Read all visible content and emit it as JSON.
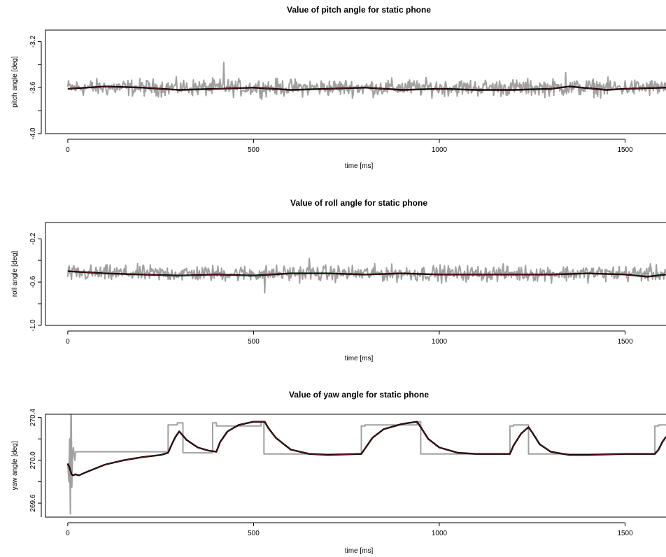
{
  "chart_data": [
    {
      "type": "line",
      "title": "Value of pitch angle for static phone",
      "xlabel": "time [ms]",
      "ylabel": "pitch angle [deg]",
      "xlim": [
        -60,
        1610
      ],
      "ylim": [
        -4.0,
        -3.1
      ],
      "xticks": [
        0,
        500,
        1000,
        1500
      ],
      "xtick_labels": [
        "0",
        "500",
        "1000",
        "1500"
      ],
      "yticks": [
        -4.0,
        -3.6,
        -3.2
      ],
      "ytick_labels": [
        "-4.0",
        "-3.6",
        "-3.2"
      ],
      "yminor": [
        -3.8,
        -3.4
      ],
      "grid": false,
      "series": [
        {
          "role": "raw",
          "color": "#a0a0a0",
          "noise": 0.055,
          "spikes": [
            [
              420,
              -3.38
            ],
            [
              1340,
              -3.47
            ]
          ],
          "x": [
            0,
            1610
          ],
          "values": [
            -3.6,
            -3.6
          ]
        },
        {
          "role": "smoothed",
          "color": "#000000",
          "x": [
            0,
            100,
            200,
            300,
            400,
            500,
            600,
            700,
            800,
            900,
            1000,
            1100,
            1200,
            1300,
            1350,
            1450,
            1500,
            1610
          ],
          "values": [
            -3.61,
            -3.59,
            -3.6,
            -3.62,
            -3.61,
            -3.6,
            -3.62,
            -3.61,
            -3.6,
            -3.62,
            -3.61,
            -3.62,
            -3.62,
            -3.61,
            -3.59,
            -3.62,
            -3.61,
            -3.6
          ]
        }
      ]
    },
    {
      "type": "line",
      "title": "Value of roll angle for static phone",
      "xlabel": "time [ms]",
      "ylabel": "roll angle [deg]",
      "xlim": [
        -60,
        1610
      ],
      "ylim": [
        -1.0,
        -0.05
      ],
      "xticks": [
        0,
        500,
        1000,
        1500
      ],
      "xtick_labels": [
        "0",
        "500",
        "1000",
        "1500"
      ],
      "yticks": [
        -1.0,
        -0.6,
        -0.2
      ],
      "ytick_labels": [
        "-1.0",
        "-0.6",
        "-0.2"
      ],
      "yminor": [
        -0.8,
        -0.4
      ],
      "grid": false,
      "series": [
        {
          "role": "raw",
          "color": "#a0a0a0",
          "noise": 0.055,
          "spikes": [
            [
              650,
              -0.38
            ],
            [
              530,
              -0.7
            ]
          ],
          "x": [
            0,
            1610
          ],
          "values": [
            -0.52,
            -0.52
          ]
        },
        {
          "role": "smoothed",
          "color": "#000000",
          "x": [
            0,
            100,
            200,
            300,
            400,
            500,
            600,
            700,
            800,
            900,
            1000,
            1100,
            1200,
            1300,
            1400,
            1500,
            1560,
            1610
          ],
          "values": [
            -0.5,
            -0.52,
            -0.53,
            -0.54,
            -0.53,
            -0.54,
            -0.52,
            -0.52,
            -0.53,
            -0.52,
            -0.53,
            -0.53,
            -0.53,
            -0.53,
            -0.52,
            -0.53,
            -0.55,
            -0.53
          ]
        }
      ]
    },
    {
      "type": "line",
      "title": "Value of yaw angle for static phone",
      "xlabel": "time [ms]",
      "ylabel": "yaw angle [deg]",
      "xlim": [
        -60,
        1610
      ],
      "ylim": [
        269.47,
        270.43
      ],
      "xticks": [
        0,
        500,
        1000,
        1500
      ],
      "xtick_labels": [
        "0",
        "500",
        "1000",
        "1500"
      ],
      "yticks": [
        269.6,
        270.0,
        270.4
      ],
      "ytick_labels": [
        "269.6",
        "270.0",
        "270.4"
      ],
      "yminor": [
        269.8,
        270.2
      ],
      "grid": false,
      "series": [
        {
          "role": "raw",
          "color": "#a0a0a0",
          "x": [
            0,
            3,
            5,
            7,
            9,
            11,
            13,
            15,
            17,
            19,
            21,
            270,
            270,
            295,
            295,
            310,
            310,
            390,
            390,
            400,
            400,
            520,
            520,
            528,
            528,
            530,
            530,
            790,
            790,
            800,
            800,
            940,
            940,
            950,
            950,
            1190,
            1190,
            1200,
            1200,
            1240,
            1240,
            1580,
            1580,
            1590,
            1590,
            1610
          ],
          "values": [
            269.97,
            269.8,
            270.2,
            269.5,
            270.7,
            269.75,
            270.05,
            270.12,
            270.06,
            270.0,
            270.08,
            270.08,
            270.33,
            270.33,
            270.35,
            270.35,
            270.07,
            270.07,
            270.35,
            270.35,
            270.32,
            270.32,
            270.36,
            270.36,
            270.06,
            270.06,
            270.06,
            270.06,
            270.32,
            270.32,
            270.33,
            270.33,
            270.36,
            270.36,
            270.06,
            270.06,
            270.32,
            270.32,
            270.33,
            270.33,
            270.06,
            270.06,
            270.32,
            270.32,
            270.33,
            270.33
          ]
        },
        {
          "role": "smoothed",
          "color": "#000000",
          "x": [
            0,
            5,
            10,
            15,
            20,
            30,
            50,
            100,
            150,
            200,
            250,
            270,
            280,
            290,
            300,
            320,
            350,
            380,
            400,
            410,
            430,
            460,
            500,
            530,
            540,
            560,
            600,
            650,
            700,
            790,
            800,
            820,
            850,
            900,
            940,
            950,
            970,
            1000,
            1050,
            1100,
            1150,
            1190,
            1200,
            1220,
            1240,
            1250,
            1270,
            1300,
            1350,
            1400,
            1500,
            1580,
            1590,
            1600,
            1610
          ],
          "values": [
            269.97,
            269.93,
            269.87,
            269.86,
            269.87,
            269.86,
            269.89,
            269.96,
            270.0,
            270.03,
            270.05,
            270.07,
            270.15,
            270.22,
            270.27,
            270.19,
            270.12,
            270.09,
            270.08,
            270.17,
            270.27,
            270.33,
            270.36,
            270.36,
            270.3,
            270.21,
            270.1,
            270.06,
            270.05,
            270.06,
            270.11,
            270.21,
            270.29,
            270.34,
            270.36,
            270.31,
            270.2,
            270.12,
            270.07,
            270.06,
            270.06,
            270.06,
            270.14,
            270.25,
            270.31,
            270.26,
            270.15,
            270.08,
            270.05,
            270.05,
            270.06,
            270.06,
            270.1,
            270.17,
            270.22
          ]
        }
      ]
    }
  ]
}
